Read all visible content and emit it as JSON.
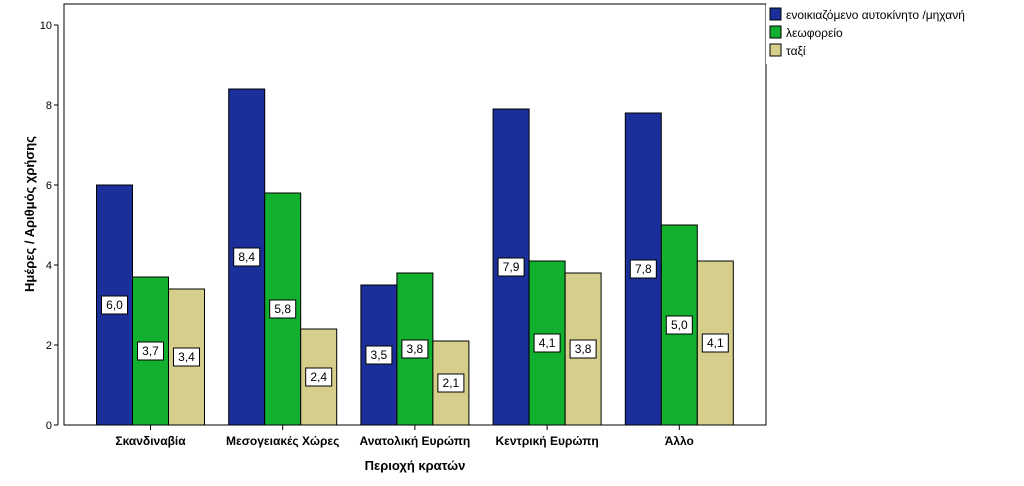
{
  "chart_data": {
    "type": "bar",
    "xlabel": "Περιοχή κρατών",
    "ylabel": "Ημέρες / Αριθμός χρήσης",
    "ylim": [
      0,
      10
    ],
    "yticks": [
      "0",
      "2",
      "4",
      "6",
      "8",
      "10"
    ],
    "grid": false,
    "legend_position": "top-right",
    "categories": [
      "Σκανδιναβία",
      "Μεσογειακές Χώρες",
      "Ανατολική Ευρώπη",
      "Κεντρική Ευρώπη",
      "Άλλο"
    ],
    "series": [
      {
        "name": "ενοικιαζόμενο αυτοκίνητο /μηχανή",
        "color": "#1a2f9a",
        "values": [
          6.0,
          8.4,
          3.5,
          7.9,
          7.8
        ],
        "labels": [
          "6,0",
          "8,4",
          "3,5",
          "7,9",
          "7,8"
        ]
      },
      {
        "name": "λεωφορείο",
        "color": "#11b02f",
        "values": [
          3.7,
          5.8,
          3.8,
          4.1,
          5.0
        ],
        "labels": [
          "3,7",
          "5,8",
          "3,8",
          "4,1",
          "5,0"
        ]
      },
      {
        "name": "ταξί",
        "color": "#d6cf8c",
        "values": [
          3.4,
          2.4,
          2.1,
          3.8,
          4.1
        ],
        "labels": [
          "3,4",
          "2,4",
          "2,1",
          "3,8",
          "4,1"
        ]
      }
    ]
  }
}
